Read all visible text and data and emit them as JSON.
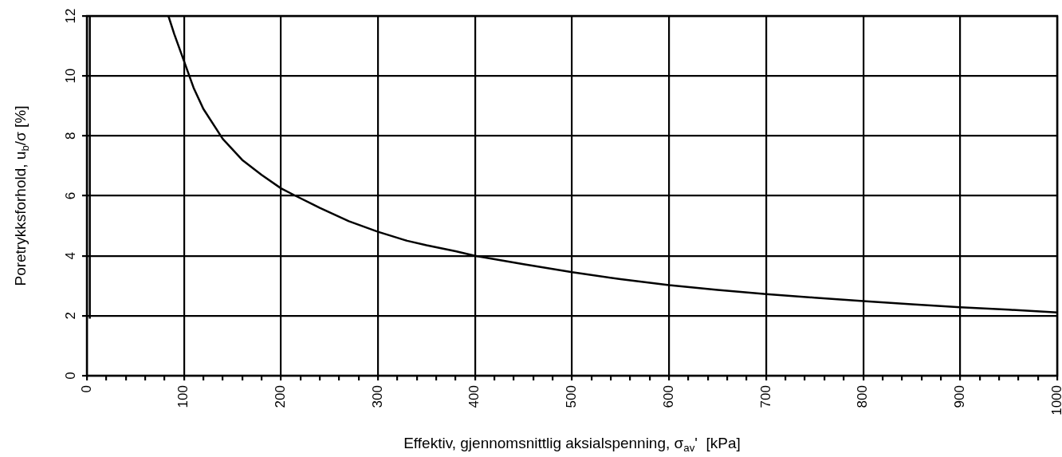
{
  "chart_data": {
    "type": "line",
    "xlabel": "Effektiv, gjennomsnittlig aksialspenning, σ$_{av}$'  [kPa]",
    "ylabel": "Poretrykksforhold, u$_{b}$/σ [%]",
    "series": [
      {
        "color": "#000000",
        "x": [
          3,
          3
        ],
        "values": [
          1.9,
          12
        ]
      },
      {
        "color": "#000000",
        "x": [
          84,
          90,
          100,
          110,
          120,
          140,
          160,
          180,
          200,
          215,
          240,
          270,
          300,
          310,
          330,
          350,
          380,
          400,
          450,
          500,
          550,
          600,
          650,
          700,
          750,
          800,
          850,
          900,
          950,
          1000
        ],
        "values": [
          12,
          11.4,
          10.5,
          9.6,
          8.9,
          7.9,
          7.2,
          6.7,
          6.25,
          6.0,
          5.6,
          5.15,
          4.8,
          4.7,
          4.5,
          4.35,
          4.15,
          4.0,
          3.72,
          3.45,
          3.22,
          3.02,
          2.86,
          2.72,
          2.6,
          2.49,
          2.38,
          2.28,
          2.2,
          2.11
        ]
      }
    ],
    "xlim": [
      0,
      1000
    ],
    "xticks": [
      0,
      {
        "value": 20,
        "label": null
      },
      {
        "value": 40,
        "label": null
      },
      {
        "value": 60,
        "label": null
      },
      {
        "value": 80,
        "label": null
      },
      100,
      {
        "value": 120,
        "label": null
      },
      {
        "value": 140,
        "label": null
      },
      {
        "value": 160,
        "label": null
      },
      {
        "value": 180,
        "label": null
      },
      200,
      {
        "value": 220,
        "label": null
      },
      {
        "value": 240,
        "label": null
      },
      {
        "value": 260,
        "label": null
      },
      {
        "value": 280,
        "label": null
      },
      300,
      {
        "value": 320,
        "label": null
      },
      {
        "value": 340,
        "label": null
      },
      {
        "value": 360,
        "label": null
      },
      {
        "value": 380,
        "label": null
      },
      400,
      {
        "value": 420,
        "label": null
      },
      {
        "value": 440,
        "label": null
      },
      {
        "value": 460,
        "label": null
      },
      {
        "value": 480,
        "label": null
      },
      500,
      {
        "value": 520,
        "label": null
      },
      {
        "value": 540,
        "label": null
      },
      {
        "value": 560,
        "label": null
      },
      {
        "value": 580,
        "label": null
      },
      600,
      {
        "value": 620,
        "label": null
      },
      {
        "value": 640,
        "label": null
      },
      {
        "value": 660,
        "label": null
      },
      {
        "value": 680,
        "label": null
      },
      700,
      {
        "value": 720,
        "label": null
      },
      {
        "value": 740,
        "label": null
      },
      {
        "value": 760,
        "label": null
      },
      {
        "value": 780,
        "label": null
      },
      800,
      {
        "value": 820,
        "label": null
      },
      {
        "value": 840,
        "label": null
      },
      {
        "value": 860,
        "label": null
      },
      {
        "value": 880,
        "label": null
      },
      900,
      {
        "value": 920,
        "label": null
      },
      {
        "value": 940,
        "label": null
      },
      {
        "value": 960,
        "label": null
      },
      {
        "value": 980,
        "label": null
      },
      1000
    ],
    "ylim": [
      0,
      12
    ],
    "yticks": [
      0,
      2,
      4,
      6,
      8,
      10,
      12
    ],
    "grid": true,
    "marker": "none",
    "line_style": "solid",
    "legend": false
  }
}
